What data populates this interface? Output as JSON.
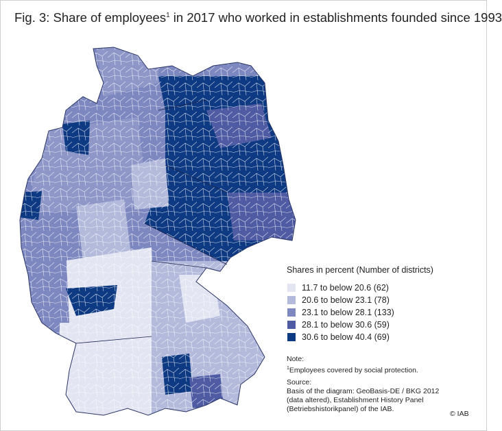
{
  "title": {
    "text_before": "Fig. 3: Share of employees",
    "footnote_mark": "1",
    "text_after": " in 2017 who worked in establishments founded since 1993"
  },
  "legend": {
    "title": "Shares in percent (Number of districts)",
    "items": [
      {
        "label": "11.7 to below 20.6 (62)",
        "color": "#e3e6f2"
      },
      {
        "label": "20.6 to below 23.1 (78)",
        "color": "#b4badb"
      },
      {
        "label": "23.1 to below 28.1 (133)",
        "color": "#7e88c0"
      },
      {
        "label": "28.1 to below 30.6 (59)",
        "color": "#4f5ba3"
      },
      {
        "label": "30.6 to below 40.4 (69)",
        "color": "#0d3a83"
      }
    ]
  },
  "notes": {
    "heading": "Note:",
    "footnote_mark": "1",
    "footnote": "Employees covered by social protection."
  },
  "source": {
    "heading": "Source:",
    "lines": [
      "Basis of the diagram: GeoBasis-DE / BKG 2012",
      "(data altered), Establishment History Panel",
      "(Betriebshistorikpanel) of the IAB."
    ]
  },
  "copyright": "© IAB"
}
